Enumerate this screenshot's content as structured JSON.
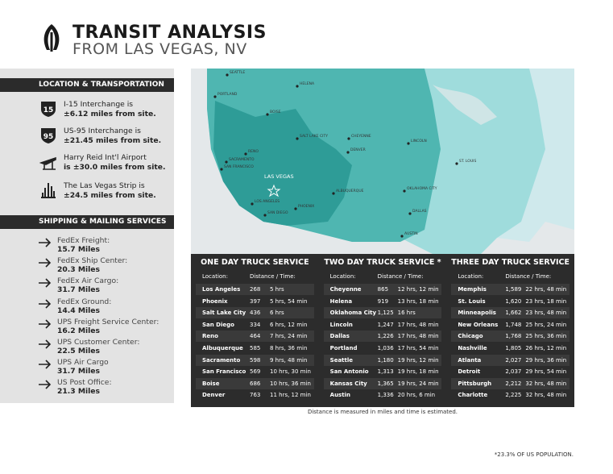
{
  "header": {
    "title": "TRANSIT ANALYSIS",
    "subtitle": "FROM LAS VEGAS, NV"
  },
  "location": {
    "title": "LOCATION & TRANSPORTATION",
    "items": [
      {
        "badge": "15",
        "line1": "I-15 Interchange is",
        "line2": "±6.12 miles from site."
      },
      {
        "badge": "95",
        "line1": "US-95 Interchange is",
        "line2": "±21.45 miles from site."
      },
      {
        "badge": null,
        "line1": "Harry Reid Int'l Airport",
        "line2": "is ±30.0 miles from site."
      },
      {
        "badge": null,
        "line1": "The Las Vegas Strip is",
        "line2": "±24.5 miles from site."
      }
    ]
  },
  "shipping": {
    "title": "SHIPPING & MAILING SERVICES",
    "items": [
      {
        "name": "FedEx Freight:",
        "distance": "15.7 Miles"
      },
      {
        "name": "FedEx Ship Center:",
        "distance": "20.3 Miles"
      },
      {
        "name": "FedEx Air Cargo:",
        "distance": "31.7 Miles"
      },
      {
        "name": "FedEx Ground:",
        "distance": "14.4 Miles"
      },
      {
        "name": "UPS Freight Service Center:",
        "distance": "16.2 Miles"
      },
      {
        "name": "UPS Customer Center:",
        "distance": "22.5 Miles"
      },
      {
        "name": "UPS Air Cargo",
        "distance": "31.7 Miles"
      },
      {
        "name": "US Post Office:",
        "distance": "21.3 Miles"
      }
    ]
  },
  "map": {
    "cities": [
      "SEATTLE",
      "PORTLAND",
      "HELENA",
      "BOISE",
      "RENO",
      "SACRAMENTO",
      "SAN FRANCISCO",
      "SALT LAKE CITY",
      "CHEYENNE",
      "DENVER",
      "LINCOLN",
      "LAS VEGAS",
      "LOS ANGELES",
      "SAN DIEGO",
      "PHOENIX",
      "ALBUQUERQUE",
      "OKLAHOMA CITY",
      "DALLAS",
      "AUSTIN",
      "ST. LOUIS"
    ]
  },
  "table": {
    "columns": [
      {
        "title": "ONE DAY TRUCK SERVICE",
        "head": [
          "Location:",
          "Distance / Time:"
        ],
        "rows": [
          [
            "Los Angeles",
            "268",
            "5 hrs"
          ],
          [
            "Phoenix",
            "397",
            "5 hrs, 54 min"
          ],
          [
            "Salt Lake City",
            "436",
            "6 hrs"
          ],
          [
            "San Diego",
            "334",
            "6 hrs, 12 min"
          ],
          [
            "Reno",
            "464",
            "7 hrs, 24 min"
          ],
          [
            "Albuquerque",
            "585",
            "8 hrs, 36 min"
          ],
          [
            "Sacramento",
            "598",
            "9 hrs, 48 min"
          ],
          [
            "San Francisco",
            "569",
            "10 hrs, 30 min"
          ],
          [
            "Boise",
            "686",
            "10 hrs, 36 min"
          ],
          [
            "Denver",
            "763",
            "11 hrs, 12 min"
          ]
        ]
      },
      {
        "title": "TWO DAY TRUCK SERVICE *",
        "head": [
          "Location:",
          "Distance / Time:"
        ],
        "rows": [
          [
            "Cheyenne",
            "865",
            "12 hrs, 12 min"
          ],
          [
            "Helena",
            "919",
            "13 hrs, 18 min"
          ],
          [
            "Oklahoma City",
            "1,125",
            "16 hrs"
          ],
          [
            "Lincoln",
            "1,247",
            "17 hrs, 48 min"
          ],
          [
            "Dallas",
            "1,226",
            "17 hrs, 48 min"
          ],
          [
            "Portland",
            "1,036",
            "17 hrs, 54 min"
          ],
          [
            "Seattle",
            "1,180",
            "19 hrs, 12 min"
          ],
          [
            "San Antonio",
            "1,313",
            "19 hrs, 18 min"
          ],
          [
            "Kansas City",
            "1,365",
            "19 hrs, 24 min"
          ],
          [
            "Austin",
            "1,336",
            "20 hrs, 6 min"
          ]
        ]
      },
      {
        "title": "THREE DAY TRUCK SERVICE",
        "head": [
          "Location:",
          "Distance / Time:"
        ],
        "rows": [
          [
            "Memphis",
            "1,589",
            "22 hrs, 48 min"
          ],
          [
            "St. Louis",
            "1,620",
            "23 hrs, 18 min"
          ],
          [
            "Minneapolis",
            "1,662",
            "23 hrs, 48 min"
          ],
          [
            "New Orleans",
            "1,748",
            "25 hrs, 24 min"
          ],
          [
            "Chicago",
            "1,768",
            "25 hrs, 36 min"
          ],
          [
            "Nashville",
            "1,805",
            "26 hrs, 12 min"
          ],
          [
            "Atlanta",
            "2,027",
            "29 hrs, 36 min"
          ],
          [
            "Detroit",
            "2,037",
            "29 hrs, 54 min"
          ],
          [
            "Pittsburgh",
            "2,212",
            "32 hrs, 48 min"
          ],
          [
            "Charlotte",
            "2,225",
            "32 hrs, 48 min"
          ]
        ]
      }
    ]
  },
  "notes": {
    "table": "Distance is measured in miles and time is estimated.",
    "population": "*23.3% OF US POPULATION."
  }
}
